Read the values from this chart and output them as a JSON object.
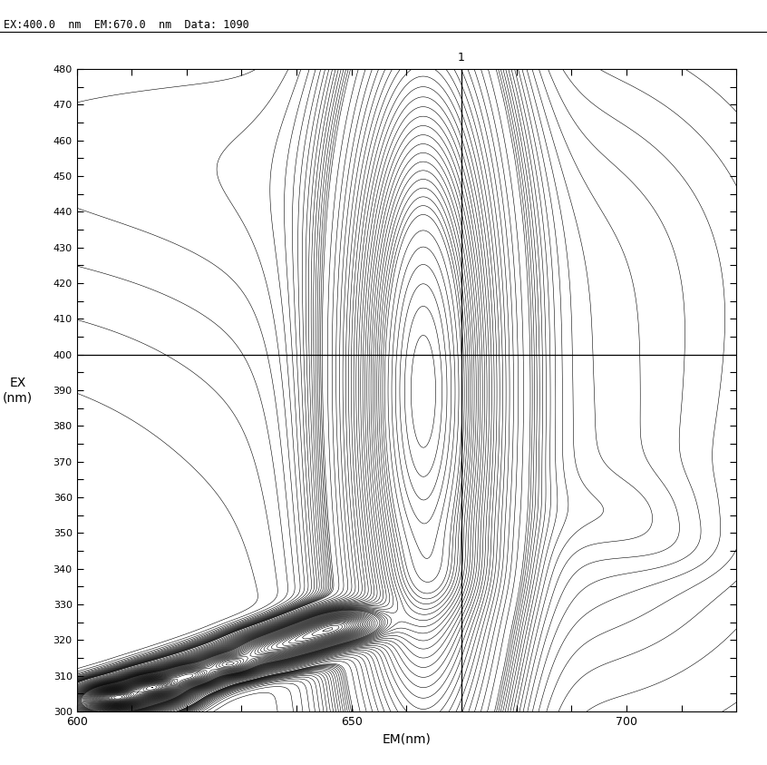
{
  "title_text": "EX:400.0  nm  EM:670.0  nm  Data: 1090",
  "xlabel": "EM(nm)",
  "ylabel": "EX\n(nm)",
  "xlim": [
    600,
    720
  ],
  "ylim": [
    300,
    480
  ],
  "crosshair_x": 670.0,
  "crosshair_y": 400.0,
  "contour_label": "1",
  "background_color": "#ffffff",
  "line_color": "#000000",
  "xticks": [
    600,
    610,
    620,
    630,
    640,
    650,
    660,
    670,
    680,
    690,
    700,
    710,
    720
  ],
  "yticks": [
    300,
    305,
    310,
    315,
    320,
    325,
    330,
    335,
    340,
    345,
    350,
    355,
    360,
    365,
    370,
    375,
    380,
    385,
    390,
    395,
    400,
    405,
    410,
    415,
    420,
    425,
    430,
    435,
    440,
    445,
    450,
    455,
    460,
    465,
    470,
    475,
    480
  ],
  "n_contours": 80
}
